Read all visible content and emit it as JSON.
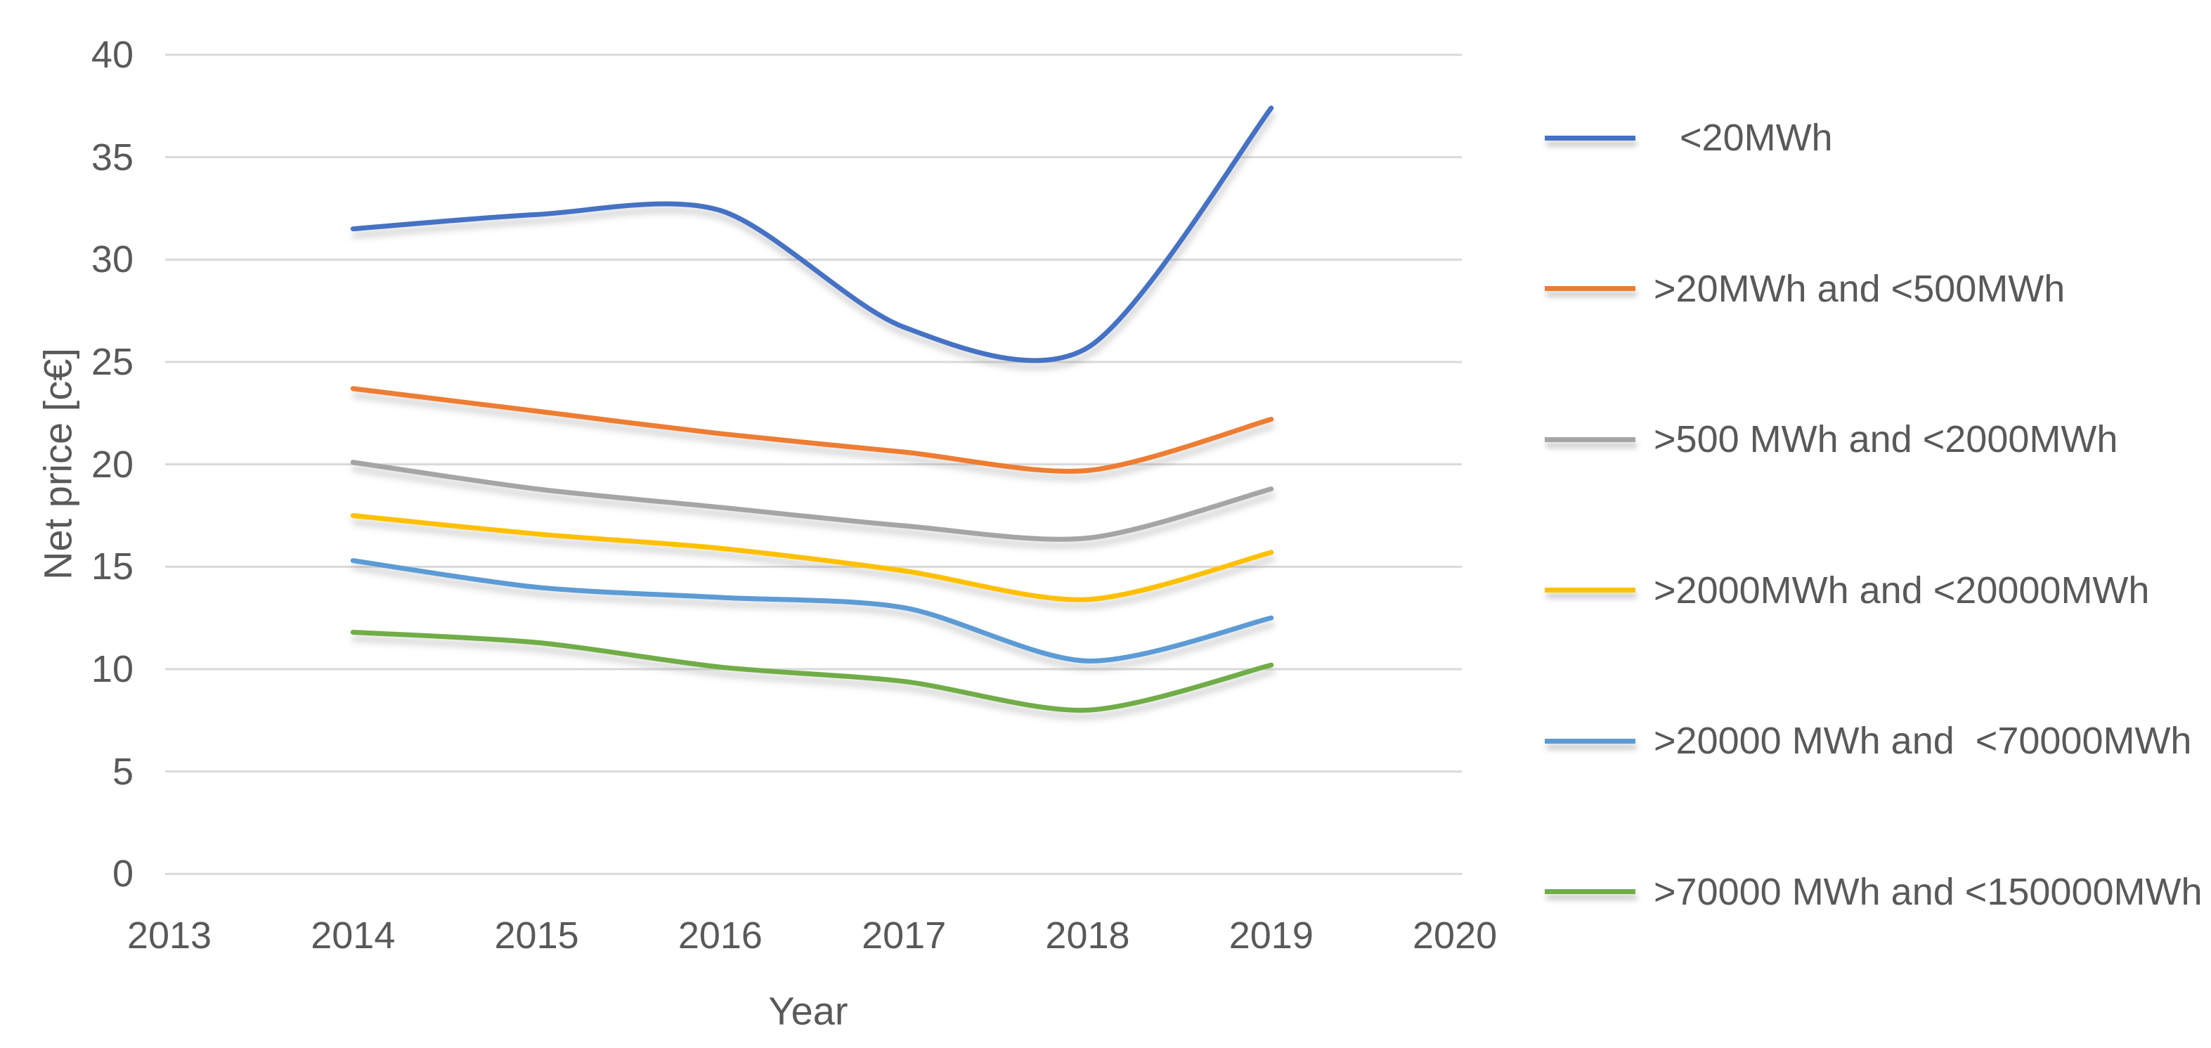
{
  "chart_data": {
    "type": "line",
    "title": "",
    "xlabel": "Year",
    "ylabel": "Net price [c€]",
    "smooth": true,
    "grid": "horizontal",
    "legend_position": "right",
    "xlim": [
      2013,
      2020
    ],
    "ylim": [
      0,
      40
    ],
    "x_axis_ticks": [
      "2013",
      "2014",
      "2015",
      "2016",
      "2017",
      "2018",
      "2019",
      "2020"
    ],
    "y_axis_ticks": [
      "0",
      "5",
      "10",
      "15",
      "20",
      "25",
      "30",
      "35",
      "40"
    ],
    "x": [
      2014,
      2015,
      2016,
      2017,
      2018,
      2019
    ],
    "series": [
      {
        "name": "<20MWh",
        "color": "#4472C4",
        "values": [
          31.5,
          32.2,
          32.4,
          26.7,
          25.7,
          37.4
        ]
      },
      {
        "name": ">20MWh and <500MWh",
        "color": "#ED7D31",
        "values": [
          23.7,
          22.6,
          21.5,
          20.6,
          19.7,
          22.2
        ]
      },
      {
        "name": ">500 MWh and <2000MWh",
        "color": "#A5A5A5",
        "values": [
          20.1,
          18.8,
          17.9,
          17.0,
          16.4,
          18.8
        ]
      },
      {
        "name": ">2000MWh and <20000MWh",
        "color": "#FFC000",
        "values": [
          17.5,
          16.6,
          15.9,
          14.8,
          13.4,
          15.7
        ]
      },
      {
        "name": ">20000 MWh and  <70000MWh",
        "color": "#5B9BD5",
        "values": [
          15.3,
          14.0,
          13.5,
          13.0,
          10.4,
          12.5
        ]
      },
      {
        "name": ">70000 MWh and <150000MWh",
        "color": "#70AD47",
        "values": [
          11.8,
          11.3,
          10.1,
          9.4,
          8.0,
          10.2
        ]
      }
    ]
  },
  "colors": {
    "background": "#FFFFFF",
    "gridline": "#D9D9D9",
    "text": "#595959"
  }
}
